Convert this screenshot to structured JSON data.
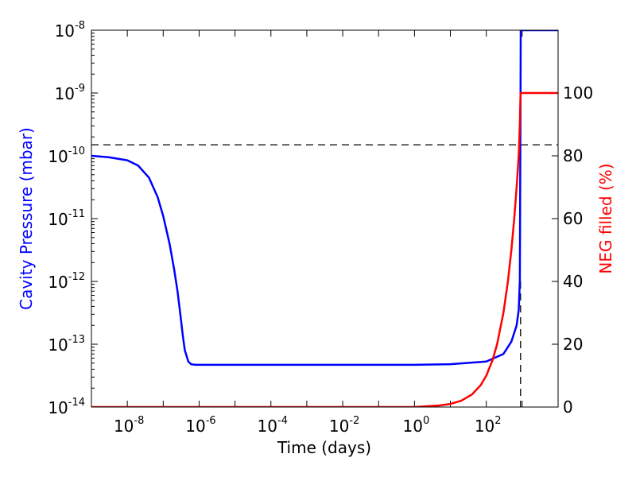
{
  "chart_data": {
    "type": "line",
    "xlabel": "Time (days)",
    "ylabel_left": "Cavity Pressure (mbar)",
    "ylabel_right": "NEG filled (%)",
    "x_scale": "log",
    "xlim": [
      1e-09,
      10000
    ],
    "left_scale": "log",
    "ylim_left": [
      1e-14,
      1e-08
    ],
    "ylim_right": [
      0,
      120
    ],
    "x_tick_labels": [
      {
        "value": 1e-08,
        "base": "10",
        "exp": "-8"
      },
      {
        "value": 1e-06,
        "base": "10",
        "exp": "-6"
      },
      {
        "value": 0.0001,
        "base": "10",
        "exp": "-4"
      },
      {
        "value": 0.01,
        "base": "10",
        "exp": "-2"
      },
      {
        "value": 1,
        "base": "10",
        "exp": "0"
      },
      {
        "value": 100,
        "base": "10",
        "exp": "2"
      }
    ],
    "left_tick_labels": [
      {
        "value": 1e-14,
        "base": "10",
        "exp": "-14"
      },
      {
        "value": 1e-13,
        "base": "10",
        "exp": "-13"
      },
      {
        "value": 1e-12,
        "base": "10",
        "exp": "-12"
      },
      {
        "value": 1e-11,
        "base": "10",
        "exp": "-11"
      },
      {
        "value": 1e-10,
        "base": "10",
        "exp": "-10"
      },
      {
        "value": 1e-09,
        "base": "10",
        "exp": "-9"
      },
      {
        "value": 1e-08,
        "base": "10",
        "exp": "-8"
      }
    ],
    "right_tick_labels": [
      "0",
      "20",
      "40",
      "60",
      "80",
      "100"
    ],
    "right_tick_values": [
      0,
      20,
      40,
      60,
      80,
      100
    ],
    "colors": {
      "pressure": "#0000ff",
      "neg": "#ff0000",
      "threshold": "#000000"
    },
    "series": [
      {
        "axis": "left",
        "color": "#0000ff",
        "x": [
          1e-09,
          3e-09,
          1e-08,
          2e-08,
          4e-08,
          7e-08,
          1e-07,
          1.5e-07,
          2e-07,
          2.5e-07,
          3e-07,
          3.5e-07,
          4e-07,
          5e-07,
          6e-07,
          8e-07,
          1e-06,
          0.0001,
          1,
          10,
          100,
          300,
          500,
          700,
          800,
          860,
          900,
          910,
          1000,
          10000
        ],
        "y": [
          1e-10,
          9.5e-11,
          8.5e-11,
          7e-11,
          4.5e-11,
          2.2e-11,
          1.1e-11,
          4e-12,
          1.6e-12,
          7e-13,
          3e-13,
          1.4e-13,
          8e-14,
          5.3e-14,
          4.8e-14,
          4.7e-14,
          4.7e-14,
          4.7e-14,
          4.7e-14,
          4.8e-14,
          5.3e-14,
          7e-14,
          1.1e-13,
          2e-13,
          3.5e-13,
          1e-12,
          1e-09,
          1e-08,
          1e-08,
          1e-08
        ]
      },
      {
        "axis": "right",
        "color": "#ff0000",
        "x": [
          1e-09,
          1,
          5,
          10,
          20,
          40,
          70,
          100,
          150,
          200,
          300,
          400,
          500,
          600,
          700,
          800,
          860,
          900,
          1000,
          10000
        ],
        "y": [
          0,
          0,
          0.5,
          1,
          2,
          4,
          7,
          10,
          15,
          20,
          30,
          40,
          50,
          60,
          70,
          80,
          90,
          100,
          100,
          100
        ]
      }
    ],
    "threshold_hline_left": 1.5e-10,
    "threshold_vline_x": 900
  }
}
